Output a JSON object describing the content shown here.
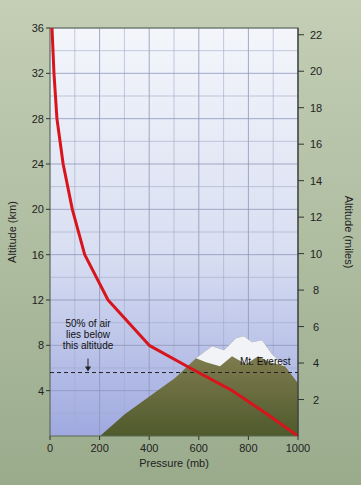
{
  "chart_data": {
    "type": "line",
    "x_label": "Pressure (mb)",
    "y_label": "Altitude (km)",
    "y2_label": "Altitude (miles)",
    "x": [
      1000,
      870,
      735,
      565,
      400,
      234,
      140,
      90,
      53,
      28,
      16,
      8
    ],
    "series": [
      {
        "color": "#d8141c",
        "values": [
          0,
          2,
          4,
          6,
          8,
          12,
          16,
          20,
          24,
          28,
          32,
          36
        ]
      }
    ],
    "xlim": [
      0,
      1000
    ],
    "xticks": [
      0,
      200,
      400,
      600,
      800,
      1000
    ],
    "ylim": [
      0,
      36
    ],
    "yticks": [
      4,
      8,
      12,
      16,
      20,
      24,
      28,
      32,
      36
    ],
    "y2lim": [
      0,
      22.37
    ],
    "y2ticks": [
      2,
      4,
      6,
      8,
      10,
      12,
      14,
      16,
      18,
      20,
      22
    ],
    "grid": true,
    "annotations": [
      {
        "lines": [
          "50% of air",
          "lies below",
          "this altitude"
        ],
        "y": 5.6
      },
      {
        "lines": [
          "Mt. Everest"
        ],
        "y": 8.8
      }
    ]
  }
}
